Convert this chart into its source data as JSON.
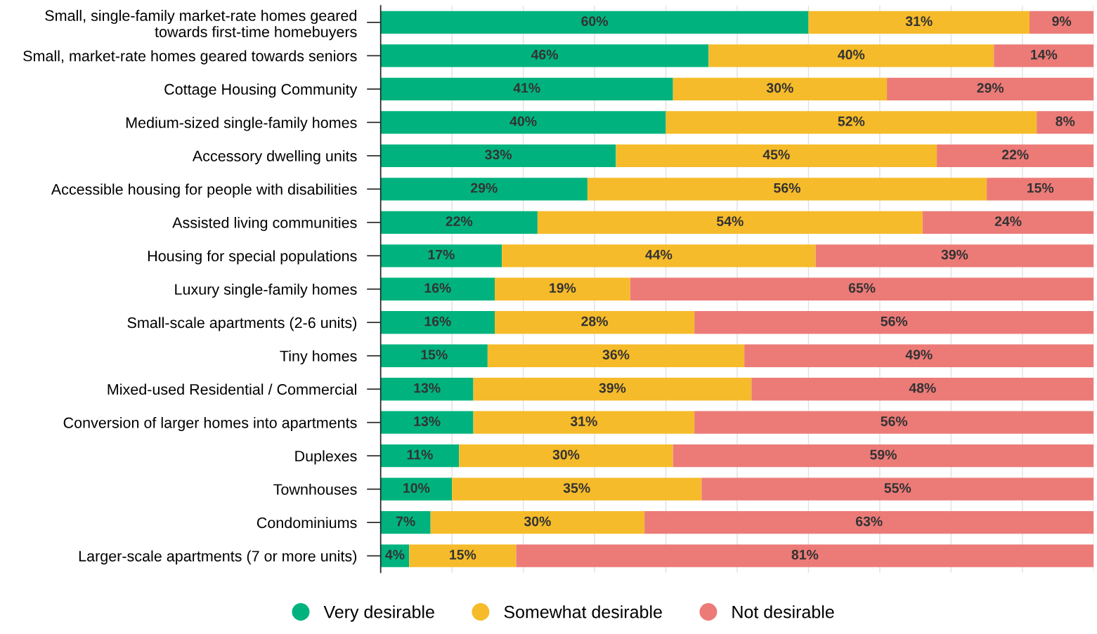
{
  "chart_data": {
    "type": "bar",
    "orientation": "horizontal",
    "stacked": true,
    "categories": [
      "Small, single-family market-rate homes geared\ntowards first-time homebuyers",
      "Small, market-rate homes geared towards seniors",
      "Cottage Housing Community",
      "Medium-sized single-family homes",
      "Accessory dwelling units",
      "Accessible housing for people with disabilities",
      "Assisted living communities",
      "Housing for special populations",
      "Luxury single-family homes",
      "Small-scale apartments (2-6 units)",
      "Tiny homes",
      "Mixed-used Residential / Commercial",
      "Conversion of larger homes into apartments",
      "Duplexes",
      "Townhouses",
      "Condominiums",
      "Larger-scale apartments (7 or more units)"
    ],
    "series": [
      {
        "name": "Very desirable",
        "color": "#00b37e",
        "values": [
          60,
          46,
          41,
          40,
          33,
          29,
          22,
          17,
          16,
          16,
          15,
          13,
          13,
          11,
          10,
          7,
          4
        ],
        "value_labels": [
          "60%",
          "46%",
          "41%",
          "40%",
          "33%",
          "29%",
          "22%",
          "17%",
          "16%",
          "16%",
          "15%",
          "13%",
          "13%",
          "11%",
          "10%",
          "7%",
          "4%"
        ]
      },
      {
        "name": "Somewhat desirable",
        "color": "#f6bb2a",
        "values": [
          31,
          40,
          30,
          52,
          45,
          56,
          54,
          44,
          19,
          28,
          36,
          39,
          31,
          30,
          35,
          30,
          15
        ],
        "value_labels": [
          "31%",
          "40%",
          "30%",
          "52%",
          "45%",
          "56%",
          "54%",
          "44%",
          "19%",
          "28%",
          "36%",
          "39%",
          "31%",
          "30%",
          "35%",
          "30%",
          "15%"
        ]
      },
      {
        "name": "Not desirable",
        "color": "#ec7b78",
        "values": [
          9,
          14,
          29,
          8,
          22,
          15,
          24,
          39,
          65,
          56,
          49,
          48,
          56,
          59,
          55,
          63,
          81
        ],
        "value_labels": [
          "9%",
          "14%",
          "29%",
          "8%",
          "22%",
          "15%",
          "24%",
          "39%",
          "65%",
          "56%",
          "49%",
          "48%",
          "56%",
          "59%",
          "55%",
          "63%",
          "81%"
        ]
      }
    ],
    "xlim": [
      0,
      100
    ],
    "xticks": [
      {
        "value": 0,
        "label": null
      },
      {
        "value": 10,
        "label": null
      },
      {
        "value": 20,
        "label": null
      },
      {
        "value": 30,
        "label": null
      },
      {
        "value": 40,
        "label": null
      },
      {
        "value": 50,
        "label": null
      },
      {
        "value": 60,
        "label": null
      },
      {
        "value": 70,
        "label": null
      },
      {
        "value": 80,
        "label": null
      },
      {
        "value": 90,
        "label": null
      },
      {
        "value": 100,
        "label": null
      }
    ],
    "tick_labels": "y",
    "grid": "x",
    "legend": "bottom"
  }
}
